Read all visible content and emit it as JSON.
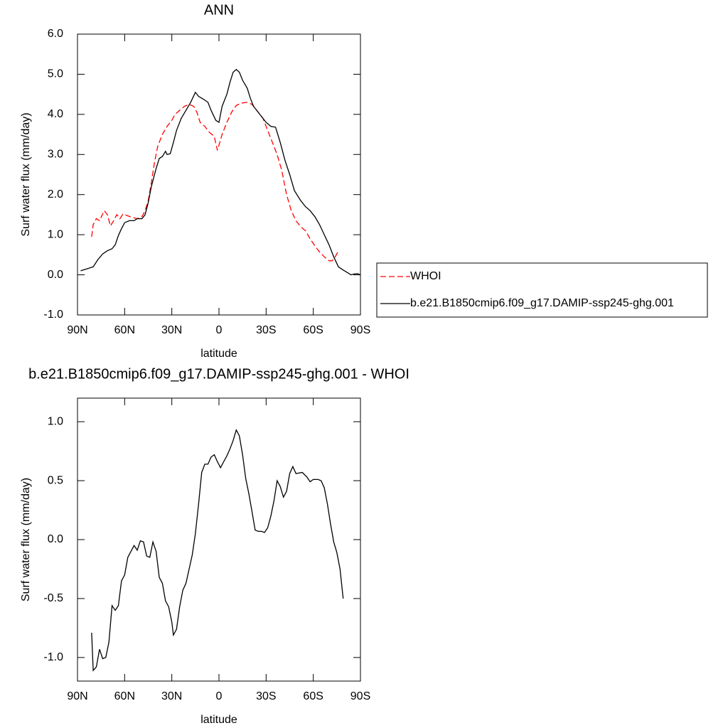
{
  "chart_data": [
    {
      "type": "line",
      "title": "ANN",
      "xlabel": "latitude",
      "ylabel": "Surf water flux (mm/day)",
      "xlim": [
        90,
        -90
      ],
      "xticks": [
        {
          "value": 90,
          "label": "90N"
        },
        {
          "value": 60,
          "label": "60N"
        },
        {
          "value": 30,
          "label": "30N"
        },
        0,
        {
          "value": -30,
          "label": "30S"
        },
        {
          "value": -60,
          "label": "60S"
        },
        {
          "value": -90,
          "label": "90S"
        }
      ],
      "ylim": [
        -1,
        6
      ],
      "yticks": [
        {
          "value": 6,
          "label": "6.0"
        },
        {
          "value": 5,
          "label": "5.0"
        },
        {
          "value": 4,
          "label": "4.0"
        },
        {
          "value": 3,
          "label": "3.0"
        },
        {
          "value": 2,
          "label": "2.0"
        },
        {
          "value": 1,
          "label": "1.0"
        },
        {
          "value": 0,
          "label": "0.0"
        },
        {
          "value": -1,
          "label": "-1.0"
        }
      ],
      "legend": "right",
      "series": [
        {
          "name": "WHOI",
          "color": "#ff0000",
          "linestyle": "dashed",
          "x": [
            81,
            80,
            78,
            76,
            73,
            71,
            69,
            67,
            65,
            63,
            61,
            58,
            55,
            52,
            49,
            47,
            45,
            43,
            41,
            39,
            36,
            33,
            30,
            28,
            25,
            22,
            19,
            16,
            14,
            12,
            9,
            6,
            3,
            1,
            -2,
            -5,
            -8,
            -11,
            -14,
            -18,
            -21,
            -24,
            -28,
            -31,
            -34,
            -37,
            -40,
            -43,
            -46,
            -49,
            -52,
            -55,
            -58,
            -61,
            -64,
            -67,
            -70,
            -72,
            -74,
            -76
          ],
          "values": [
            0.95,
            1.25,
            1.4,
            1.35,
            1.6,
            1.5,
            1.22,
            1.35,
            1.5,
            1.4,
            1.52,
            1.47,
            1.43,
            1.4,
            1.45,
            1.6,
            1.85,
            2.3,
            2.8,
            3.2,
            3.5,
            3.7,
            3.85,
            4.0,
            4.1,
            4.2,
            4.25,
            4.2,
            4.05,
            3.8,
            3.7,
            3.55,
            3.45,
            3.1,
            3.5,
            3.8,
            4.05,
            4.22,
            4.28,
            4.3,
            4.25,
            4.1,
            3.9,
            3.6,
            3.3,
            3.0,
            2.6,
            2.0,
            1.6,
            1.35,
            1.2,
            1.1,
            0.9,
            0.72,
            0.57,
            0.45,
            0.35,
            0.35,
            0.45,
            0.6
          ]
        },
        {
          "name": "b.e21.B1850cmip6.f09_g17.DAMIP-ssp245-ghg.001",
          "color": "#000000",
          "linestyle": "solid",
          "x": [
            88,
            84,
            80,
            77,
            74,
            71,
            68,
            66,
            64,
            62,
            60,
            57,
            54,
            52,
            49,
            47,
            45,
            43,
            40,
            38,
            36,
            34,
            33,
            31,
            29,
            27,
            24,
            21,
            18,
            15,
            13,
            10,
            7,
            5,
            2,
            0,
            -2,
            -5,
            -7,
            -9,
            -11,
            -13,
            -15,
            -18,
            -20,
            -22,
            -25,
            -28,
            -30,
            -33,
            -36,
            -39,
            -42,
            -45,
            -48,
            -52,
            -55,
            -58,
            -61,
            -64,
            -67,
            -70,
            -73,
            -76,
            -79,
            -82,
            -84,
            -86,
            -88,
            -90
          ],
          "values": [
            0.1,
            0.15,
            0.2,
            0.38,
            0.52,
            0.6,
            0.65,
            0.75,
            0.98,
            1.15,
            1.3,
            1.35,
            1.35,
            1.4,
            1.4,
            1.5,
            1.8,
            2.2,
            2.65,
            2.9,
            2.95,
            3.08,
            3.0,
            3.02,
            3.3,
            3.6,
            3.9,
            4.1,
            4.3,
            4.55,
            4.45,
            4.38,
            4.3,
            4.1,
            3.85,
            3.8,
            4.2,
            4.5,
            4.8,
            5.05,
            5.12,
            5.05,
            4.85,
            4.65,
            4.4,
            4.2,
            4.05,
            3.9,
            3.8,
            3.7,
            3.68,
            3.3,
            2.85,
            2.5,
            2.1,
            1.85,
            1.7,
            1.6,
            1.45,
            1.25,
            1.0,
            0.75,
            0.45,
            0.2,
            0.12,
            0.05,
            0.0,
            0.02,
            0.03,
            0.0
          ]
        }
      ]
    },
    {
      "type": "line",
      "title": "b.e21.B1850cmip6.f09_g17.DAMIP-ssp245-ghg.001 - WHOI",
      "xlabel": "latitude",
      "ylabel": "Surf water flux (mm/day)",
      "xlim": [
        90,
        -90
      ],
      "xticks": [
        {
          "value": 90,
          "label": "90N"
        },
        {
          "value": 60,
          "label": "60N"
        },
        {
          "value": 30,
          "label": "30N"
        },
        0,
        {
          "value": -30,
          "label": "30S"
        },
        {
          "value": -60,
          "label": "60S"
        },
        {
          "value": -90,
          "label": "90S"
        }
      ],
      "ylim": [
        -1.2,
        1.2
      ],
      "yticks": [
        {
          "value": 1,
          "label": "1.0"
        },
        0.5,
        {
          "value": 0,
          "label": "0.0"
        },
        -0.5,
        {
          "value": -1,
          "label": "-1.0"
        }
      ],
      "series": [
        {
          "color": "#000000",
          "linestyle": "solid",
          "x": [
            81,
            80,
            78,
            76,
            74,
            72,
            70,
            68,
            66,
            64,
            62,
            60,
            58,
            56,
            54,
            52,
            50,
            48,
            46,
            44,
            42,
            40,
            38,
            36,
            34,
            32,
            30,
            29,
            27,
            25,
            23,
            21,
            19,
            17,
            15,
            13,
            11,
            9,
            7,
            5,
            3,
            1,
            -1,
            -3,
            -5,
            -7,
            -9,
            -11,
            -13,
            -15,
            -17,
            -19,
            -21,
            -23,
            -25,
            -27,
            -29,
            -31,
            -33,
            -35,
            -37,
            -39,
            -41,
            -43,
            -45,
            -47,
            -49,
            -53,
            -56,
            -58,
            -60,
            -63,
            -65,
            -67,
            -69,
            -71,
            -73,
            -75,
            -77,
            -79
          ],
          "values": [
            -0.79,
            -1.11,
            -1.08,
            -0.93,
            -1.01,
            -1.0,
            -0.87,
            -0.56,
            -0.6,
            -0.56,
            -0.35,
            -0.3,
            -0.15,
            -0.1,
            -0.05,
            -0.09,
            -0.01,
            -0.02,
            -0.14,
            -0.15,
            -0.02,
            -0.1,
            -0.32,
            -0.37,
            -0.52,
            -0.57,
            -0.7,
            -0.81,
            -0.76,
            -0.57,
            -0.43,
            -0.37,
            -0.25,
            -0.13,
            0.05,
            0.3,
            0.57,
            0.64,
            0.64,
            0.7,
            0.72,
            0.66,
            0.61,
            0.66,
            0.71,
            0.77,
            0.84,
            0.93,
            0.88,
            0.72,
            0.52,
            0.39,
            0.24,
            0.08,
            0.07,
            0.07,
            0.06,
            0.1,
            0.2,
            0.33,
            0.5,
            0.45,
            0.36,
            0.41,
            0.56,
            0.62,
            0.56,
            0.57,
            0.53,
            0.49,
            0.51,
            0.51,
            0.5,
            0.44,
            0.3,
            0.13,
            -0.02,
            -0.11,
            -0.25,
            -0.5
          ]
        }
      ]
    }
  ]
}
